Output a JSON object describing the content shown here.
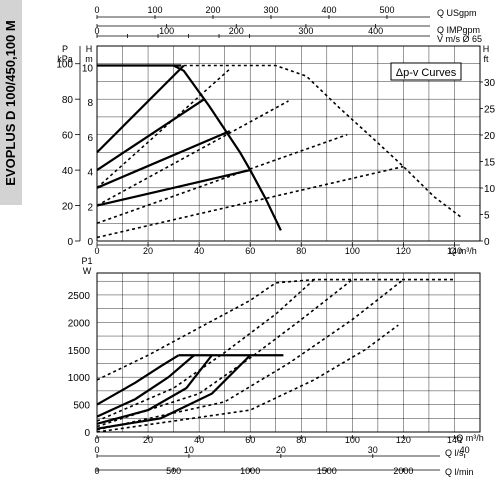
{
  "side_title": "EVOPLUS D 100/450,100 M",
  "chart_data": [
    {
      "type": "line",
      "title": "",
      "legend": "Δp-v Curves",
      "x_axis": {
        "label": "Q m³/h",
        "ticks": [
          0,
          20,
          40,
          60,
          80,
          100,
          120,
          140
        ],
        "range": [
          0,
          150
        ]
      },
      "y_left_primary": {
        "label": "P",
        "unit": "kPa",
        "ticks": [
          0,
          20,
          40,
          60,
          80,
          100
        ],
        "range": [
          0,
          110
        ]
      },
      "y_left_secondary": {
        "label": "H",
        "unit": "m",
        "ticks": [
          0,
          2,
          4,
          6,
          8,
          10
        ]
      },
      "y_right_primary": {
        "label": "H",
        "unit": "ft",
        "ticks": [
          0,
          5,
          10,
          15,
          20,
          25,
          30
        ]
      },
      "top_axes": [
        {
          "label": "Q USgpm",
          "ticks": [
            0,
            100,
            200,
            300,
            400,
            500,
            600
          ]
        },
        {
          "label": "Q IMPgpm",
          "ticks": [
            0,
            100,
            200,
            300,
            400,
            500
          ]
        },
        {
          "label": "V m/s Ø 65",
          "ticks": [
            0,
            1,
            2,
            3,
            4,
            5
          ]
        }
      ],
      "series": [
        {
          "style": "solid",
          "x": [
            0,
            30,
            33
          ],
          "y": [
            99,
            99,
            99
          ]
        },
        {
          "style": "solid",
          "x": [
            0,
            34
          ],
          "y": [
            50,
            99
          ]
        },
        {
          "style": "solid",
          "x": [
            0,
            42
          ],
          "y": [
            40,
            80
          ]
        },
        {
          "style": "solid",
          "x": [
            0,
            52
          ],
          "y": [
            30,
            62
          ]
        },
        {
          "style": "solid",
          "x": [
            0,
            60
          ],
          "y": [
            20,
            40
          ]
        },
        {
          "style": "solid",
          "x": [
            30,
            34,
            38,
            44,
            50,
            56,
            60,
            66,
            72
          ],
          "y": [
            99,
            96,
            88,
            76,
            63,
            50,
            40,
            24,
            6
          ]
        },
        {
          "style": "dashed",
          "x": [
            0,
            120
          ],
          "y": [
            2,
            42
          ]
        },
        {
          "style": "dashed",
          "x": [
            0,
            98
          ],
          "y": [
            10,
            60
          ]
        },
        {
          "style": "dashed",
          "x": [
            0,
            75
          ],
          "y": [
            20,
            79
          ]
        },
        {
          "style": "dashed",
          "x": [
            0,
            52
          ],
          "y": [
            30,
            97
          ]
        },
        {
          "style": "dashed",
          "x": [
            34,
            70,
            82,
            95,
            108,
            120,
            132,
            143
          ],
          "y": [
            99,
            99,
            93,
            75,
            58,
            42,
            25,
            13
          ]
        }
      ]
    },
    {
      "type": "line",
      "title": "",
      "x_axis": {
        "label": "Q m³/h",
        "ticks": [
          0,
          20,
          40,
          60,
          80,
          100,
          120,
          140
        ],
        "range": [
          0,
          150
        ]
      },
      "y_left_primary": {
        "label": "P1",
        "unit": "W",
        "ticks": [
          0,
          500,
          1000,
          1500,
          2000,
          2500
        ],
        "range": [
          0,
          2900
        ]
      },
      "bottom_axes": [
        {
          "label": "Q l/s",
          "ticks": [
            0,
            10,
            20,
            30,
            40
          ]
        },
        {
          "label": "Q l/min",
          "ticks": [
            0,
            500,
            1000,
            1500,
            2000
          ]
        }
      ],
      "series": [
        {
          "style": "solid",
          "x": [
            32,
            73
          ],
          "y": [
            1400,
            1400
          ]
        },
        {
          "style": "solid",
          "x": [
            0,
            15,
            25,
            32
          ],
          "y": [
            500,
            900,
            1200,
            1400
          ]
        },
        {
          "style": "solid",
          "x": [
            0,
            15,
            28,
            38
          ],
          "y": [
            280,
            600,
            1000,
            1400
          ]
        },
        {
          "style": "solid",
          "x": [
            0,
            20,
            35,
            45
          ],
          "y": [
            150,
            400,
            800,
            1400
          ]
        },
        {
          "style": "solid",
          "x": [
            0,
            25,
            45,
            60
          ],
          "y": [
            60,
            250,
            700,
            1400
          ]
        },
        {
          "style": "dashed",
          "x": [
            0,
            20,
            40,
            60,
            70,
            85,
            140
          ],
          "y": [
            950,
            1400,
            1900,
            2400,
            2720,
            2780,
            2780
          ]
        },
        {
          "style": "dashed",
          "x": [
            0,
            30,
            50,
            70,
            85
          ],
          "y": [
            200,
            800,
            1450,
            2150,
            2780
          ]
        },
        {
          "style": "dashed",
          "x": [
            0,
            40,
            60,
            80,
            100
          ],
          "y": [
            100,
            700,
            1350,
            2050,
            2780
          ]
        },
        {
          "style": "dashed",
          "x": [
            0,
            50,
            75,
            100,
            120
          ],
          "y": [
            40,
            550,
            1250,
            2050,
            2780
          ]
        },
        {
          "style": "dashed",
          "x": [
            0,
            60,
            85,
            105,
            118
          ],
          "y": [
            0,
            400,
            950,
            1500,
            1950
          ]
        }
      ]
    }
  ]
}
